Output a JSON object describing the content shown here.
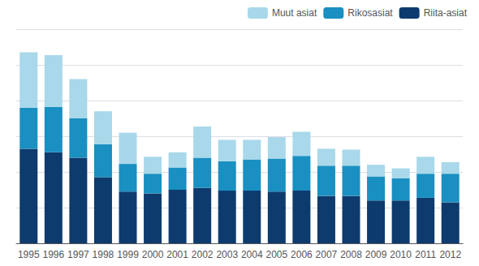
{
  "chart_data": {
    "type": "bar",
    "stacked": true,
    "categories": [
      "1995",
      "1996",
      "1997",
      "1998",
      "1999",
      "2000",
      "2001",
      "2002",
      "2003",
      "2004",
      "2005",
      "2006",
      "2007",
      "2008",
      "2009",
      "2010",
      "2011",
      "2012"
    ],
    "series": [
      {
        "name": "Riita-asiat",
        "color": "#0d3b6e",
        "values": [
          530,
          510,
          480,
          370,
          290,
          280,
          300,
          310,
          295,
          295,
          290,
          295,
          265,
          265,
          240,
          240,
          255,
          230
        ]
      },
      {
        "name": "Rikosasiat",
        "color": "#1a8fc1",
        "values": [
          230,
          255,
          220,
          185,
          155,
          110,
          125,
          170,
          165,
          175,
          185,
          195,
          170,
          170,
          135,
          125,
          135,
          160
        ]
      },
      {
        "name": "Muut asiat",
        "color": "#a8d8ea",
        "values": [
          310,
          290,
          220,
          185,
          175,
          95,
          85,
          175,
          120,
          110,
          120,
          135,
          95,
          90,
          65,
          55,
          95,
          65
        ]
      }
    ],
    "ylim": [
      0,
      1200
    ],
    "yticks": [
      0,
      200,
      400,
      600,
      800,
      1000,
      1200
    ],
    "grid": true,
    "legend": "upper right",
    "tick_labels": "x"
  }
}
